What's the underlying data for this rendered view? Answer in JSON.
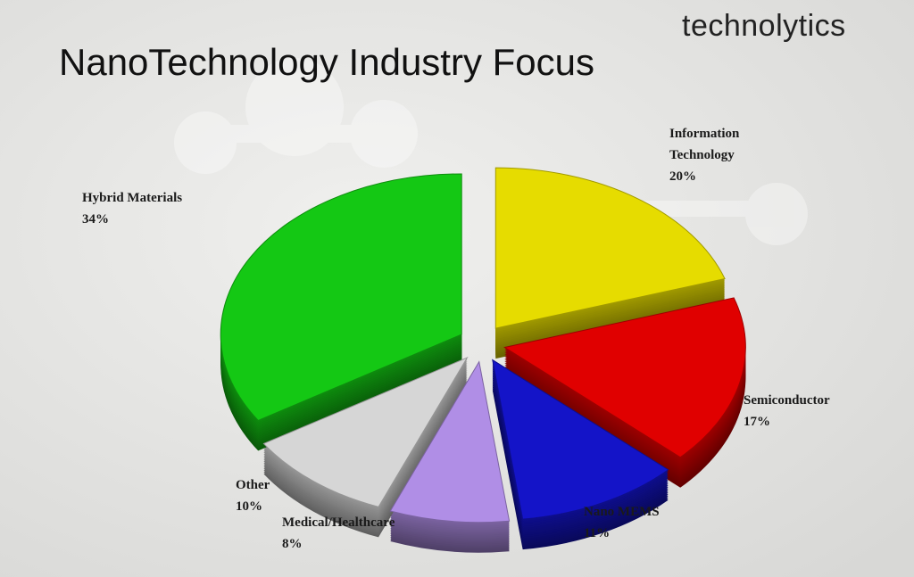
{
  "chart_data": {
    "type": "pie",
    "title": "NanoTechnology Industry Focus",
    "subtitle": "technolytics",
    "categories": [
      "Information Technology",
      "Semiconductor",
      "Nano MEMS",
      "Medical/Healthcare",
      "Other",
      "Hybrid Materials"
    ],
    "values": [
      20,
      17,
      11,
      8,
      10,
      34
    ],
    "value_labels": [
      "20%",
      "17%",
      "11%",
      "8%",
      "10%",
      "34%"
    ],
    "colors": [
      "#e6dc00",
      "#e00000",
      "#1414c8",
      "#b08ee6",
      "#d6d6d6",
      "#14c814"
    ]
  }
}
